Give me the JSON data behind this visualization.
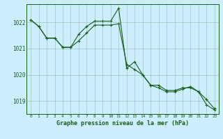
{
  "bg_color": "#cceeff",
  "grid_color": "#aacccc",
  "line_color": "#1a5c1a",
  "xlabel": "Graphe pression niveau de la mer (hPa)",
  "ylim": [
    1018.5,
    1022.7
  ],
  "xlim": [
    -0.5,
    23.5
  ],
  "yticks": [
    1019,
    1020,
    1021,
    1022
  ],
  "xticks": [
    0,
    1,
    2,
    3,
    4,
    5,
    6,
    7,
    8,
    9,
    10,
    11,
    12,
    13,
    14,
    15,
    16,
    17,
    18,
    19,
    20,
    21,
    22,
    23
  ],
  "series1": [
    1022.1,
    1021.85,
    1021.4,
    1021.4,
    1021.05,
    1021.05,
    1021.55,
    1021.85,
    1022.05,
    1022.05,
    1022.05,
    1022.55,
    1020.25,
    1020.5,
    1020.0,
    1019.6,
    1019.6,
    1019.4,
    1019.4,
    1019.5,
    1019.5,
    1019.35,
    1019.05,
    1018.7
  ],
  "series2": [
    1022.1,
    1021.85,
    1021.4,
    1021.4,
    1021.05,
    1021.05,
    1021.3,
    1021.6,
    1021.9,
    1021.9,
    1021.9,
    1021.95,
    1020.4,
    1020.2,
    1020.0,
    1019.6,
    1019.5,
    1019.35,
    1019.35,
    1019.45,
    1019.55,
    1019.35,
    1018.85,
    1018.65
  ],
  "ylabel_fontsize": 5.5,
  "xlabel_fontsize": 5.5,
  "title_fontsize": 6.0
}
